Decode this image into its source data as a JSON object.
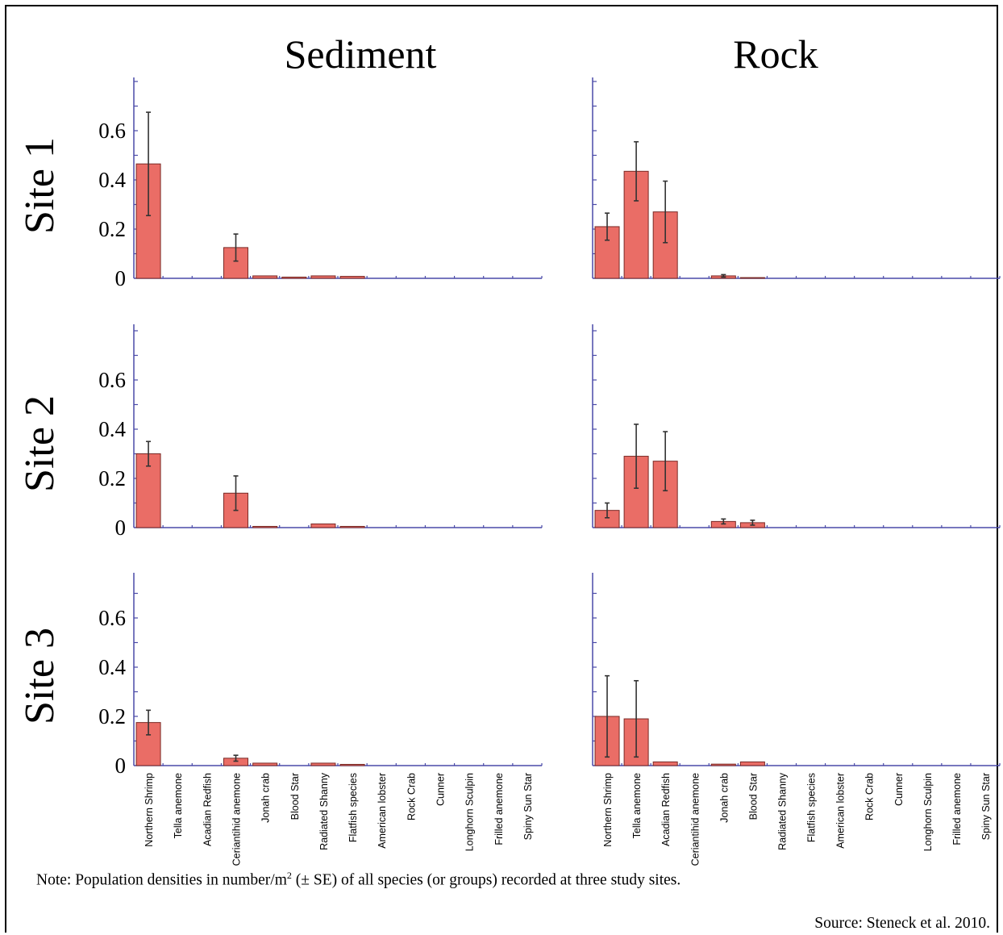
{
  "figure": {
    "note_prefix": "Note:  Population densities in number/m",
    "note_sup": "2",
    "note_suffix": " (± SE) of all species (or groups) recorded at three study sites.",
    "source": "Source:  Steneck et al. 2010."
  },
  "colors": {
    "bar_fill": "#ea6d66",
    "bar_stroke": "#7a2a26",
    "axis": "#4a4aa8",
    "error_bar": "#333333"
  },
  "chart_data": {
    "type": "bar",
    "column_titles": [
      "Sediment",
      "Rock"
    ],
    "row_titles": [
      "Site 1",
      "Site 2",
      "Site 3"
    ],
    "y_ticks": [
      "0",
      "0.2",
      "0.4",
      "0.6"
    ],
    "ylim": [
      0,
      0.8
    ],
    "grid": false,
    "categories": [
      "Northern Shrimp",
      "Tella anemone",
      "Acadian Redfish",
      "Ceriantihid anemone",
      "Jonah crab",
      "Blood Star",
      "Radiated Shanny",
      "Flatfish species",
      "American lobster",
      "Rock Crab",
      "Cunner",
      "Longhorn Sculpin",
      "Frilled anemone",
      "Spiny Sun Star"
    ],
    "panels": [
      {
        "column": "Sediment",
        "row": "Site 1",
        "values": [
          0.465,
          0,
          0,
          0.125,
          0.01,
          0.005,
          0.01,
          0.008,
          0,
          0,
          0,
          0,
          0,
          0
        ],
        "errors": [
          0.21,
          0,
          0,
          0.055,
          0,
          0,
          0,
          0,
          0,
          0,
          0,
          0,
          0,
          0
        ]
      },
      {
        "column": "Rock",
        "row": "Site 1",
        "values": [
          0.21,
          0.435,
          0.27,
          0,
          0.01,
          0.003,
          0,
          0,
          0,
          0,
          0,
          0,
          0,
          0
        ],
        "errors": [
          0.055,
          0.12,
          0.125,
          0,
          0.005,
          0,
          0,
          0,
          0,
          0,
          0,
          0,
          0,
          0
        ]
      },
      {
        "column": "Sediment",
        "row": "Site 2",
        "values": [
          0.3,
          0,
          0,
          0.14,
          0.005,
          0,
          0.015,
          0.005,
          0,
          0,
          0,
          0,
          0,
          0
        ],
        "errors": [
          0.05,
          0,
          0,
          0.07,
          0,
          0,
          0,
          0,
          0,
          0,
          0,
          0,
          0,
          0
        ]
      },
      {
        "column": "Rock",
        "row": "Site 2",
        "values": [
          0.07,
          0.29,
          0.27,
          0,
          0.025,
          0.02,
          0,
          0,
          0,
          0,
          0,
          0,
          0,
          0
        ],
        "errors": [
          0.03,
          0.13,
          0.12,
          0,
          0.01,
          0.01,
          0,
          0,
          0,
          0,
          0,
          0,
          0,
          0
        ]
      },
      {
        "column": "Sediment",
        "row": "Site 3",
        "values": [
          0.175,
          0,
          0,
          0.03,
          0.01,
          0,
          0.01,
          0.005,
          0,
          0,
          0,
          0,
          0,
          0
        ],
        "errors": [
          0.05,
          0,
          0,
          0.012,
          0,
          0,
          0,
          0,
          0,
          0,
          0,
          0,
          0,
          0
        ]
      },
      {
        "column": "Rock",
        "row": "Site 3",
        "values": [
          0.2,
          0.19,
          0.015,
          0,
          0.006,
          0.015,
          0,
          0,
          0,
          0,
          0,
          0,
          0,
          0
        ],
        "errors": [
          0.165,
          0.155,
          0,
          0,
          0,
          0,
          0,
          0,
          0,
          0,
          0,
          0,
          0,
          0
        ]
      }
    ]
  }
}
